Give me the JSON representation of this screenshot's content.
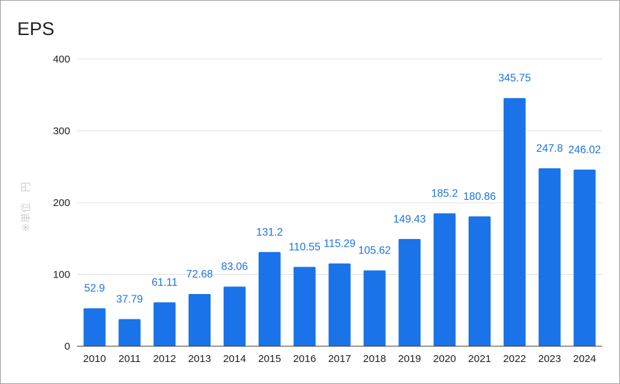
{
  "chart_data": {
    "type": "bar",
    "title": "EPS",
    "xlabel": "",
    "ylabel": "※単位　円",
    "categories": [
      "2010",
      "2011",
      "2012",
      "2013",
      "2014",
      "2015",
      "2016",
      "2017",
      "2018",
      "2019",
      "2020",
      "2021",
      "2022",
      "2023",
      "2024"
    ],
    "values": [
      52.9,
      37.79,
      61.11,
      72.68,
      83.06,
      131.2,
      110.55,
      115.29,
      105.62,
      149.43,
      185.2,
      180.86,
      345.75,
      247.8,
      246.02
    ],
    "data_labels": [
      "52.9",
      "37.79",
      "61.11",
      "72.68",
      "83.06",
      "131.2",
      "110.55",
      "115.29",
      "105.62",
      "149.43",
      "185.2",
      "180.86",
      "345.75",
      "247.8",
      "246.02"
    ],
    "y_ticks": [
      "0",
      "100",
      "200",
      "300",
      "400"
    ],
    "ylim": [
      0,
      400
    ],
    "grid": true,
    "legend": "none",
    "colors": {
      "bar": "#1a73e8",
      "data_label": "#1a73e8",
      "grid": "#e0e0e0",
      "axis": "#333333",
      "ylabel": "#cfcfcf"
    }
  }
}
